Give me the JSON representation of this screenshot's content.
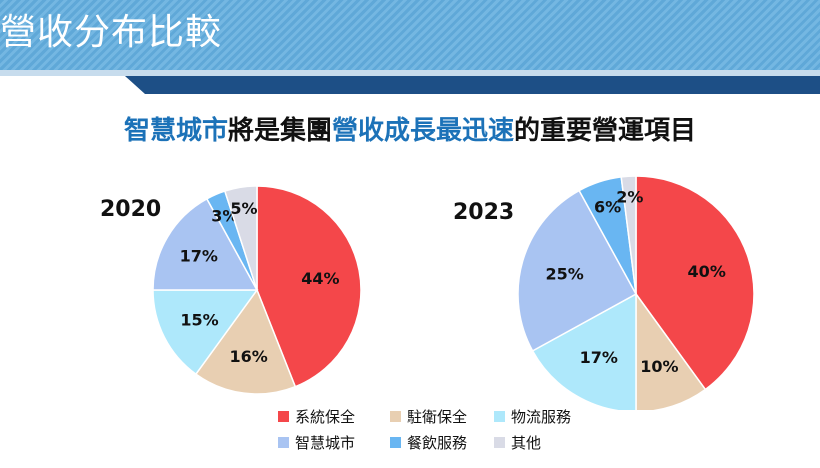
{
  "slide": {
    "title": "營收分布比較",
    "headline": {
      "part1": "智慧城市",
      "part2": "將是集團",
      "part3": "營收成長最迅速",
      "part4": "的重要營運項目"
    }
  },
  "colors": {
    "header": "#6aaedd",
    "accent_dark": "#1d4f86",
    "accent_light": "#c7dced",
    "highlight": "#1c72b8"
  },
  "chart_data": [
    {
      "type": "pie",
      "title": "2020",
      "categories": [
        "系統保全",
        "駐衛保全",
        "物流服務",
        "智慧城市",
        "餐飲服務",
        "其他"
      ],
      "values": [
        44,
        16,
        15,
        17,
        3,
        5
      ],
      "labels": [
        "44%",
        "16%",
        "15%",
        "17%",
        "3%",
        "5%"
      ],
      "colors": [
        "#f4474a",
        "#e8cfb2",
        "#aee8fb",
        "#a9c4f2",
        "#69b6f2",
        "#d9dbe6"
      ]
    },
    {
      "type": "pie",
      "title": "2023",
      "categories": [
        "系統保全",
        "駐衛保全",
        "物流服務",
        "智慧城市",
        "餐飲服務",
        "其他"
      ],
      "values": [
        40,
        10,
        17,
        25,
        6,
        2
      ],
      "labels": [
        "40%",
        "10%",
        "17%",
        "25%",
        "6%",
        "2%"
      ],
      "colors": [
        "#f4474a",
        "#e8cfb2",
        "#aee8fb",
        "#a9c4f2",
        "#69b6f2",
        "#d9dbe6"
      ]
    }
  ],
  "legend": {
    "items": [
      {
        "label": "系統保全",
        "color": "#f4474a"
      },
      {
        "label": "駐衛保全",
        "color": "#e8cfb2"
      },
      {
        "label": "物流服務",
        "color": "#aee8fb"
      },
      {
        "label": "智慧城市",
        "color": "#a9c4f2"
      },
      {
        "label": "餐飲服務",
        "color": "#69b6f2"
      },
      {
        "label": "其他",
        "color": "#d9dbe6"
      }
    ]
  }
}
